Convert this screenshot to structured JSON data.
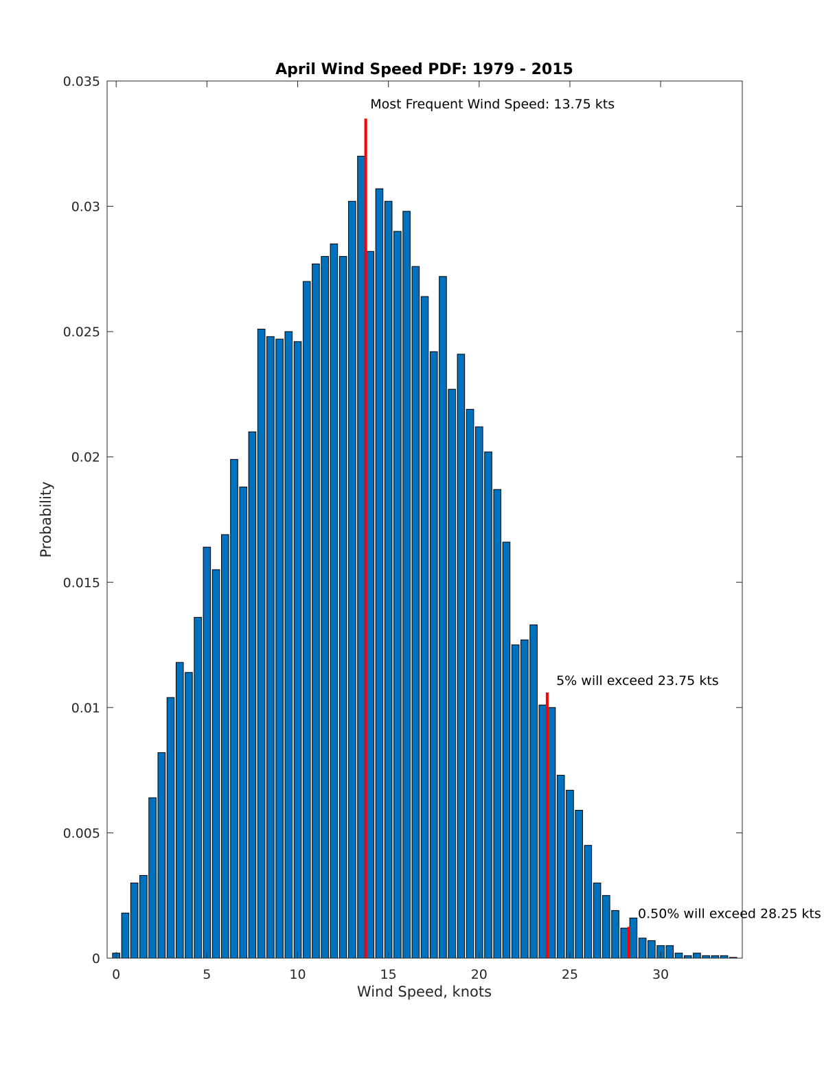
{
  "chart_data": {
    "type": "bar",
    "title": "April Wind Speed PDF: 1979 - 2015",
    "xlabel": "Wind Speed, knots",
    "ylabel": "Probability",
    "xlim": [
      -0.5,
      34.5
    ],
    "ylim": [
      0,
      0.035
    ],
    "xticks": [
      0,
      5,
      10,
      15,
      20,
      25,
      30
    ],
    "xtick_labels": [
      "0",
      "5",
      "10",
      "15",
      "20",
      "25",
      "30"
    ],
    "yticks": [
      0,
      0.005,
      0.01,
      0.015,
      0.02,
      0.025,
      0.03,
      0.035
    ],
    "ytick_labels": [
      "0",
      "0.005",
      "0.01",
      "0.015",
      "0.02",
      "0.025",
      "0.03",
      "0.035"
    ],
    "bar_width": 0.4,
    "bar_color": "#0072BD",
    "marker_color": "#FF0000",
    "x": [
      0,
      0.5,
      1,
      1.5,
      2,
      2.5,
      3,
      3.5,
      4,
      4.5,
      5,
      5.5,
      6,
      6.5,
      7,
      7.5,
      8,
      8.5,
      9,
      9.5,
      10,
      10.5,
      11,
      11.5,
      12,
      12.5,
      13,
      13.5,
      14,
      14.5,
      15,
      15.5,
      16,
      16.5,
      17,
      17.5,
      18,
      18.5,
      19,
      19.5,
      20,
      20.5,
      21,
      21.5,
      22,
      22.5,
      23,
      23.5,
      24,
      24.5,
      25,
      25.5,
      26,
      26.5,
      27,
      27.5,
      28,
      28.5,
      29,
      29.5,
      30,
      30.5,
      31,
      31.5,
      32,
      32.5,
      33,
      33.5,
      34
    ],
    "values": [
      0.0002,
      0.0018,
      0.003,
      0.0033,
      0.0064,
      0.0082,
      0.0104,
      0.0118,
      0.0114,
      0.0136,
      0.0164,
      0.0155,
      0.0169,
      0.0199,
      0.0188,
      0.021,
      0.0251,
      0.0248,
      0.0247,
      0.025,
      0.0246,
      0.027,
      0.0277,
      0.028,
      0.0285,
      0.028,
      0.0302,
      0.032,
      0.0282,
      0.0307,
      0.0302,
      0.029,
      0.0298,
      0.0276,
      0.0264,
      0.0242,
      0.0272,
      0.0227,
      0.0241,
      0.0219,
      0.0212,
      0.0202,
      0.0187,
      0.0166,
      0.0125,
      0.0127,
      0.0133,
      0.0101,
      0.01,
      0.0073,
      0.0067,
      0.0059,
      0.0045,
      0.003,
      0.0025,
      0.0019,
      0.0012,
      0.0016,
      0.0008,
      0.0007,
      0.0005,
      0.0005,
      0.0002,
      0.0001,
      0.0002,
      0.0001,
      0.0001,
      0.0001,
      3e-05
    ],
    "markers": [
      {
        "x": 13.75,
        "y_top": 0.0335,
        "label": "Most Frequent Wind Speed: 13.75 kts",
        "label_x": 14.0,
        "label_y": 0.0339
      },
      {
        "x": 23.75,
        "y_top": 0.0106,
        "label": "5% will exceed 23.75 kts",
        "label_x": 24.25,
        "label_y": 0.0109
      },
      {
        "x": 28.25,
        "y_top": 0.00125,
        "label": "0.50% will exceed 28.25 kts",
        "label_x": 28.75,
        "label_y": 0.0016
      }
    ]
  }
}
